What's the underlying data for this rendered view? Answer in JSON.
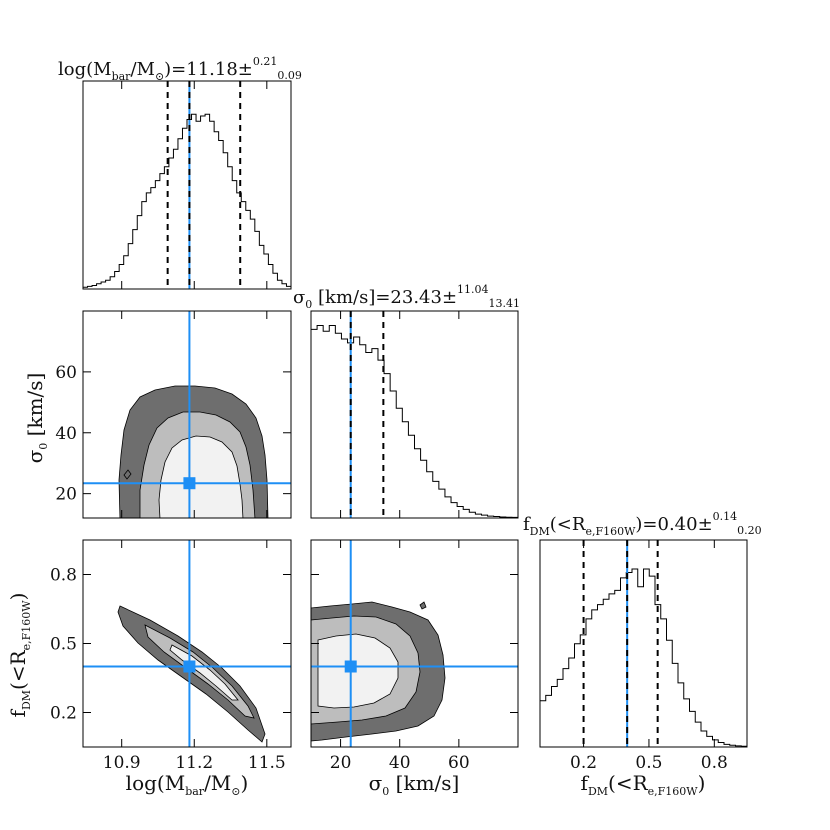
{
  "colors": {
    "best_fit": "#1e8ff5",
    "contour_outer": "#6e6e6e",
    "contour_middle": "#bdbdbd",
    "contour_inner": "#f2f2f2",
    "frame": "#000000"
  },
  "chart_data": {
    "type": "corner",
    "parameters": [
      {
        "key": "logMbar",
        "best": 11.18,
        "err_plus": 0.21,
        "err_minus": 0.09,
        "quantiles": [
          11.09,
          11.18,
          11.39
        ],
        "range": [
          10.74,
          11.6
        ],
        "ticks": [
          10.9,
          11.2,
          11.5
        ],
        "tick_labels": [
          "10.9",
          "11.2",
          "11.5"
        ],
        "histogram": [
          0.01,
          0.015,
          0.02,
          0.03,
          0.04,
          0.05,
          0.07,
          0.1,
          0.14,
          0.19,
          0.26,
          0.34,
          0.42,
          0.5,
          0.55,
          0.58,
          0.62,
          0.66,
          0.7,
          0.75,
          0.8,
          0.86,
          0.92,
          0.97,
          1.0,
          0.96,
          0.99,
          1.0,
          0.96,
          0.9,
          0.85,
          0.78,
          0.7,
          0.62,
          0.55,
          0.5,
          0.45,
          0.4,
          0.33,
          0.25,
          0.2,
          0.14,
          0.09,
          0.05,
          0.03,
          0.015
        ]
      },
      {
        "key": "sigma0",
        "best": 23.43,
        "err_plus": 11.04,
        "err_minus": 13.41,
        "quantiles": [
          23.43,
          34.47
        ],
        "range": [
          10,
          80
        ],
        "ticks": [
          20,
          40,
          60
        ],
        "tick_labels": [
          "20",
          "40",
          "60"
        ],
        "histogram": [
          0.98,
          1.0,
          0.97,
          1.0,
          0.96,
          0.93,
          0.91,
          0.94,
          0.9,
          0.86,
          0.88,
          0.82,
          0.75,
          0.66,
          0.57,
          0.5,
          0.43,
          0.36,
          0.3,
          0.24,
          0.19,
          0.15,
          0.11,
          0.08,
          0.06,
          0.045,
          0.03,
          0.02,
          0.015,
          0.01,
          0.008,
          0.005,
          0.004,
          0.003
        ]
      },
      {
        "key": "fDM",
        "best": 0.4,
        "err_plus": 0.14,
        "err_minus": 0.2,
        "quantiles": [
          0.2,
          0.4,
          0.54
        ],
        "range": [
          0.0,
          0.95
        ],
        "ticks": [
          0.2,
          0.5,
          0.8
        ],
        "tick_labels": [
          "0.2",
          "0.5",
          "0.8"
        ],
        "histogram": [
          0.26,
          0.29,
          0.34,
          0.38,
          0.44,
          0.5,
          0.58,
          0.63,
          0.72,
          0.77,
          0.8,
          0.83,
          0.86,
          0.88,
          0.95,
          0.98,
          1.0,
          0.9,
          1.0,
          0.96,
          0.8,
          0.72,
          0.6,
          0.47,
          0.36,
          0.27,
          0.2,
          0.14,
          0.09,
          0.06,
          0.04,
          0.025,
          0.015,
          0.01,
          0.006,
          0.004
        ]
      }
    ],
    "panels": {
      "sigma_vs_m": {
        "y_range": [
          12,
          80
        ],
        "y_ticks": [
          20,
          40,
          60
        ],
        "y_tick_labels": [
          "20",
          "40",
          "60"
        ],
        "marker": [
          11.18,
          23.43
        ]
      },
      "fdm_vs_m": {
        "y_range": [
          0.05,
          0.95
        ],
        "y_ticks": [
          0.2,
          0.5,
          0.8
        ],
        "y_tick_labels": [
          "0.2",
          "0.5",
          "0.8"
        ],
        "marker": [
          11.18,
          0.4
        ]
      },
      "fdm_vs_sigma": {
        "marker": [
          23.43,
          0.4
        ]
      }
    },
    "titles": {
      "logMbar": {
        "main": "log(M",
        "sub1": "bar",
        "mid": "/M",
        "sun": "⊙",
        "end": ")=11.18±",
        "sup": "0.21",
        "subv": "0.09"
      },
      "sigma0": {
        "main": "σ",
        "sub1": "0",
        "end": " [km/s]=23.43±",
        "sup": "11.04",
        "subv": "13.41"
      },
      "fDM": {
        "main": "f",
        "sub1": "DM",
        "mid": "(<R",
        "sub2": "e,F160W",
        "end": ")=0.40±",
        "sup": "0.14",
        "subv": "0.20"
      }
    },
    "axis_labels": {
      "x_logMbar": {
        "main": "log(M",
        "sub1": "bar",
        "mid": "/M",
        "sun": "⊙",
        "end": ")"
      },
      "x_sigma0": {
        "main": "σ",
        "sub1": "0",
        "end": " [km/s]"
      },
      "x_fDM": {
        "main": "f",
        "sub1": "DM",
        "mid": "(<R",
        "sub2": "e,F160W",
        "end": ")"
      },
      "y_sigma0": {
        "main": "σ",
        "sub1": "0",
        "end": " [km/s]"
      },
      "y_fDM": {
        "main": "f",
        "sub1": "DM",
        "mid": "(<R",
        "sub2": "e,F160W",
        "end": ")"
      }
    }
  }
}
